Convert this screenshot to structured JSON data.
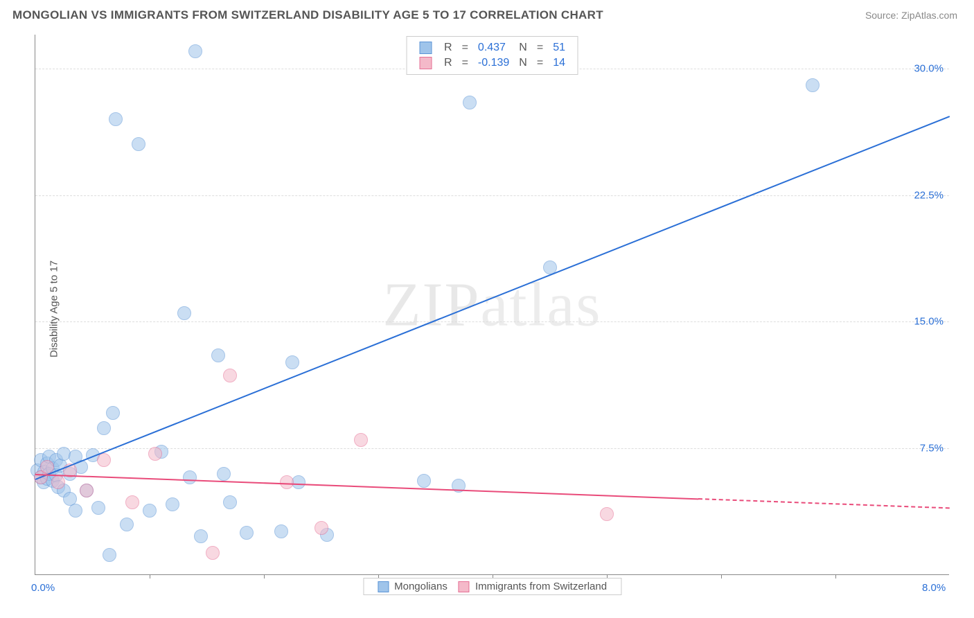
{
  "header": {
    "title": "MONGOLIAN VS IMMIGRANTS FROM SWITZERLAND DISABILITY AGE 5 TO 17 CORRELATION CHART",
    "source_prefix": "Source: ",
    "source_name": "ZipAtlas.com"
  },
  "chart": {
    "type": "scatter",
    "ylabel": "Disability Age 5 to 17",
    "xlim": [
      0,
      8.0
    ],
    "ylim": [
      0,
      32.0
    ],
    "xticks": [
      0.0,
      1.0,
      2.0,
      3.0,
      4.0,
      5.0,
      6.0,
      7.0,
      8.0
    ],
    "yticks": [
      7.5,
      15.0,
      22.5,
      30.0
    ],
    "xtick_labels": {
      "0": "0.0%",
      "8": "8.0%"
    },
    "ytick_labels": {
      "7.5": "7.5%",
      "15": "15.0%",
      "22.5": "22.5%",
      "30": "30.0%"
    },
    "xtick_color": "#2a6fd6",
    "ytick_color": "#2a6fd6",
    "grid_color": "#dddddd",
    "axis_color": "#888888",
    "background": "#ffffff",
    "point_radius": 10,
    "watermark": "ZIPatlas",
    "series": [
      {
        "name": "Mongolians",
        "color_fill": "#9fc4ea",
        "color_stroke": "#5b94d6",
        "fill_opacity": 0.55,
        "R": "0.437",
        "N": "51",
        "trend": {
          "x1": 0.0,
          "y1": 5.7,
          "x2": 8.0,
          "y2": 27.2,
          "solid_until_x": 8.0
        },
        "trend_color": "#2a6fd6",
        "points": [
          [
            0.02,
            6.2
          ],
          [
            0.05,
            5.8
          ],
          [
            0.05,
            6.8
          ],
          [
            0.07,
            5.5
          ],
          [
            0.08,
            6.1
          ],
          [
            0.1,
            5.7
          ],
          [
            0.1,
            6.6
          ],
          [
            0.12,
            6.0
          ],
          [
            0.12,
            7.0
          ],
          [
            0.15,
            5.6
          ],
          [
            0.15,
            6.3
          ],
          [
            0.18,
            5.9
          ],
          [
            0.18,
            6.8
          ],
          [
            0.2,
            5.2
          ],
          [
            0.22,
            6.5
          ],
          [
            0.25,
            5.0
          ],
          [
            0.25,
            7.2
          ],
          [
            0.3,
            4.5
          ],
          [
            0.3,
            6.0
          ],
          [
            0.35,
            3.8
          ],
          [
            0.4,
            6.4
          ],
          [
            0.45,
            5.0
          ],
          [
            0.5,
            7.1
          ],
          [
            0.55,
            4.0
          ],
          [
            0.6,
            8.7
          ],
          [
            0.65,
            1.2
          ],
          [
            0.68,
            9.6
          ],
          [
            0.7,
            27.0
          ],
          [
            0.8,
            3.0
          ],
          [
            0.9,
            25.5
          ],
          [
            1.0,
            3.8
          ],
          [
            1.1,
            7.3
          ],
          [
            1.2,
            4.2
          ],
          [
            1.3,
            15.5
          ],
          [
            1.35,
            5.8
          ],
          [
            1.4,
            31.0
          ],
          [
            1.45,
            2.3
          ],
          [
            1.6,
            13.0
          ],
          [
            1.65,
            6.0
          ],
          [
            1.7,
            4.3
          ],
          [
            1.85,
            2.5
          ],
          [
            2.15,
            2.6
          ],
          [
            2.25,
            12.6
          ],
          [
            2.3,
            5.5
          ],
          [
            2.55,
            2.4
          ],
          [
            3.4,
            5.6
          ],
          [
            3.7,
            5.3
          ],
          [
            3.8,
            28.0
          ],
          [
            4.5,
            18.2
          ],
          [
            6.8,
            29.0
          ],
          [
            0.35,
            7.0
          ]
        ]
      },
      {
        "name": "Immigrants from Switzerland",
        "color_fill": "#f4b9c9",
        "color_stroke": "#e66f94",
        "fill_opacity": 0.55,
        "R": "-0.139",
        "N": "14",
        "trend": {
          "x1": 0.0,
          "y1": 6.0,
          "x2": 8.0,
          "y2": 4.0,
          "solid_until_x": 5.8
        },
        "trend_color": "#e94b7a",
        "points": [
          [
            0.05,
            5.8
          ],
          [
            0.1,
            6.4
          ],
          [
            0.2,
            5.5
          ],
          [
            0.3,
            6.2
          ],
          [
            0.45,
            5.0
          ],
          [
            0.6,
            6.8
          ],
          [
            0.85,
            4.3
          ],
          [
            1.05,
            7.2
          ],
          [
            1.55,
            1.3
          ],
          [
            1.7,
            11.8
          ],
          [
            2.2,
            5.5
          ],
          [
            2.5,
            2.8
          ],
          [
            2.85,
            8.0
          ],
          [
            5.0,
            3.6
          ]
        ]
      }
    ],
    "legend_top": {
      "rows": [
        {
          "swatch_fill": "#9fc4ea",
          "swatch_stroke": "#5b94d6",
          "R_label": "R",
          "eq": "=",
          "R_val": "0.437",
          "N_label": "N",
          "N_val": "51",
          "R_color": "#2a6fd6",
          "N_color": "#2a6fd6"
        },
        {
          "swatch_fill": "#f4b9c9",
          "swatch_stroke": "#e66f94",
          "R_label": "R",
          "eq": "=",
          "R_val": "-0.139",
          "N_label": "N",
          "N_val": "14",
          "R_color": "#2a6fd6",
          "N_color": "#2a6fd6"
        }
      ]
    },
    "legend_bottom": {
      "items": [
        {
          "swatch_fill": "#9fc4ea",
          "swatch_stroke": "#5b94d6",
          "label": "Mongolians"
        },
        {
          "swatch_fill": "#f4b9c9",
          "swatch_stroke": "#e66f94",
          "label": "Immigrants from Switzerland"
        }
      ]
    }
  }
}
